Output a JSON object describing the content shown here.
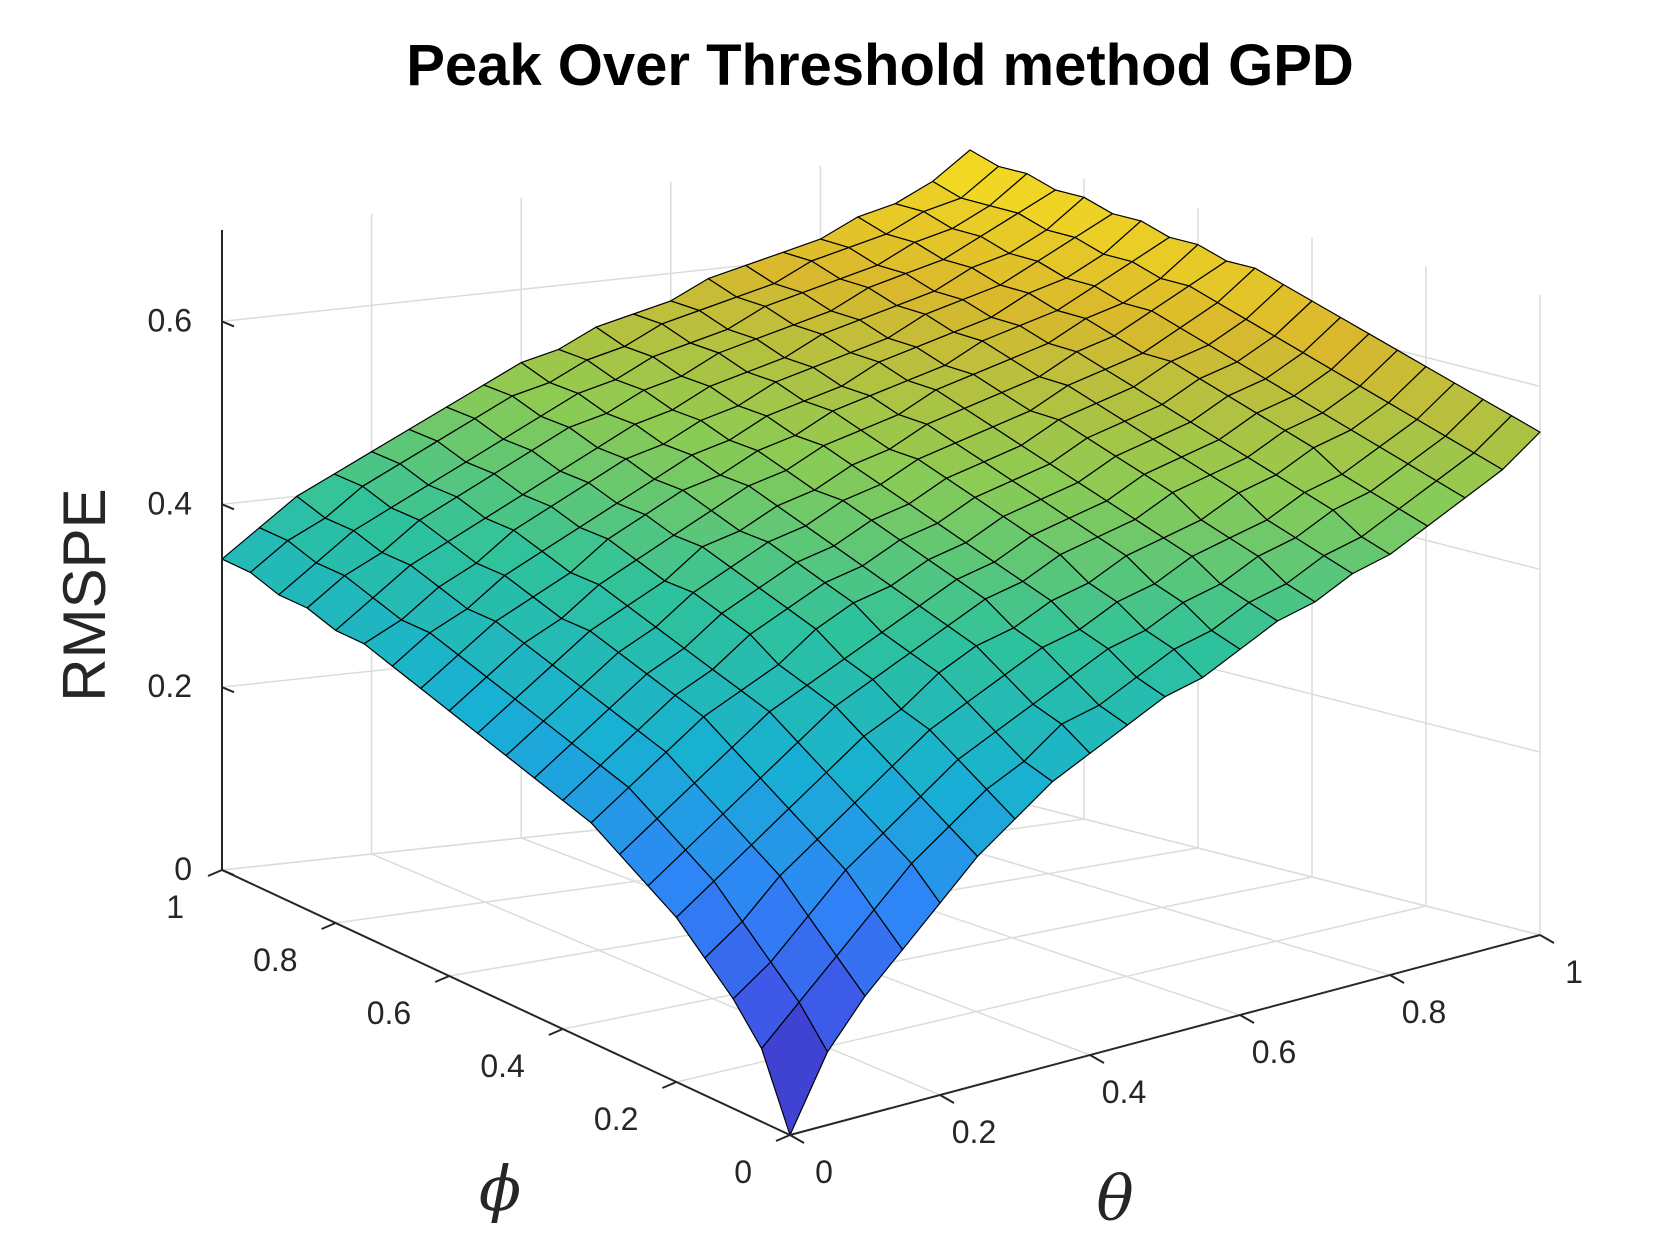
{
  "chart_data": {
    "type": "surface",
    "title": "Peak Over Threshold method GPD",
    "xlabel": "θ",
    "ylabel": "ϕ",
    "zlabel": "RMSPE",
    "xlim": [
      0,
      1
    ],
    "ylim": [
      0,
      1
    ],
    "zlim": [
      0,
      0.7
    ],
    "xticks": [
      "0",
      "0.2",
      "0.4",
      "0.6",
      "0.8",
      "1"
    ],
    "yticks": [
      "0",
      "0.2",
      "0.4",
      "0.6",
      "0.8",
      "1"
    ],
    "zticks": [
      "0",
      "0.2",
      "0.4",
      "0.6"
    ],
    "grid": true,
    "colormap": "parula",
    "colors": {
      "colormap_stops": [
        "#3e26a8",
        "#4150e4",
        "#2f83f8",
        "#18b0d3",
        "#2ec29c",
        "#8ccb54",
        "#d9b82d",
        "#f9e021"
      ],
      "edge": "#000000",
      "grid": "#dcdcdc",
      "axis": "#262626"
    },
    "x": [
      0,
      0.05,
      0.1,
      0.15,
      0.2,
      0.25,
      0.3,
      0.35,
      0.4,
      0.45,
      0.5,
      0.55,
      0.6,
      0.65,
      0.7,
      0.75,
      0.8,
      0.85,
      0.9,
      0.95,
      1
    ],
    "y": [
      0,
      0.05,
      0.1,
      0.15,
      0.2,
      0.25,
      0.3,
      0.35,
      0.4,
      0.45,
      0.5,
      0.55,
      0.6,
      0.65,
      0.7,
      0.75,
      0.8,
      0.85,
      0.9,
      0.95,
      1
    ],
    "z": [
      [
        0.0,
        0.08,
        0.13,
        0.17,
        0.21,
        0.25,
        0.28,
        0.31,
        0.33,
        0.35,
        0.37,
        0.38,
        0.4,
        0.42,
        0.43,
        0.45,
        0.46,
        0.48,
        0.5,
        0.52,
        0.55
      ],
      [
        0.08,
        0.12,
        0.16,
        0.2,
        0.24,
        0.27,
        0.3,
        0.32,
        0.35,
        0.36,
        0.38,
        0.4,
        0.41,
        0.43,
        0.44,
        0.46,
        0.47,
        0.49,
        0.51,
        0.53,
        0.56
      ],
      [
        0.12,
        0.15,
        0.19,
        0.23,
        0.26,
        0.29,
        0.32,
        0.34,
        0.36,
        0.38,
        0.4,
        0.41,
        0.43,
        0.44,
        0.46,
        0.47,
        0.49,
        0.5,
        0.52,
        0.54,
        0.57
      ],
      [
        0.15,
        0.18,
        0.22,
        0.25,
        0.28,
        0.31,
        0.34,
        0.36,
        0.38,
        0.4,
        0.41,
        0.43,
        0.44,
        0.46,
        0.47,
        0.48,
        0.5,
        0.51,
        0.53,
        0.55,
        0.58
      ],
      [
        0.18,
        0.21,
        0.24,
        0.27,
        0.3,
        0.33,
        0.35,
        0.38,
        0.4,
        0.41,
        0.43,
        0.44,
        0.46,
        0.47,
        0.48,
        0.5,
        0.51,
        0.53,
        0.54,
        0.56,
        0.59
      ],
      [
        0.2,
        0.23,
        0.26,
        0.29,
        0.32,
        0.35,
        0.37,
        0.39,
        0.41,
        0.43,
        0.44,
        0.46,
        0.47,
        0.48,
        0.5,
        0.51,
        0.52,
        0.54,
        0.55,
        0.57,
        0.6
      ],
      [
        0.22,
        0.25,
        0.28,
        0.31,
        0.34,
        0.36,
        0.38,
        0.4,
        0.42,
        0.44,
        0.45,
        0.47,
        0.48,
        0.49,
        0.51,
        0.52,
        0.53,
        0.55,
        0.56,
        0.58,
        0.61
      ],
      [
        0.24,
        0.27,
        0.3,
        0.33,
        0.35,
        0.37,
        0.4,
        0.42,
        0.43,
        0.45,
        0.46,
        0.48,
        0.49,
        0.5,
        0.52,
        0.53,
        0.54,
        0.56,
        0.57,
        0.59,
        0.62
      ],
      [
        0.25,
        0.28,
        0.31,
        0.34,
        0.36,
        0.39,
        0.41,
        0.43,
        0.44,
        0.46,
        0.47,
        0.49,
        0.5,
        0.51,
        0.53,
        0.54,
        0.55,
        0.57,
        0.58,
        0.6,
        0.63
      ],
      [
        0.26,
        0.29,
        0.32,
        0.35,
        0.37,
        0.4,
        0.42,
        0.44,
        0.45,
        0.47,
        0.48,
        0.5,
        0.51,
        0.52,
        0.54,
        0.55,
        0.56,
        0.58,
        0.59,
        0.61,
        0.64
      ],
      [
        0.27,
        0.3,
        0.33,
        0.36,
        0.38,
        0.41,
        0.43,
        0.45,
        0.46,
        0.48,
        0.49,
        0.51,
        0.52,
        0.53,
        0.54,
        0.56,
        0.57,
        0.58,
        0.6,
        0.62,
        0.65
      ],
      [
        0.28,
        0.31,
        0.34,
        0.37,
        0.39,
        0.41,
        0.44,
        0.45,
        0.47,
        0.48,
        0.5,
        0.51,
        0.53,
        0.54,
        0.55,
        0.56,
        0.58,
        0.59,
        0.61,
        0.63,
        0.65
      ],
      [
        0.29,
        0.32,
        0.35,
        0.37,
        0.4,
        0.42,
        0.44,
        0.46,
        0.48,
        0.49,
        0.51,
        0.52,
        0.53,
        0.55,
        0.56,
        0.57,
        0.58,
        0.6,
        0.61,
        0.63,
        0.66
      ],
      [
        0.3,
        0.33,
        0.36,
        0.38,
        0.4,
        0.43,
        0.45,
        0.47,
        0.48,
        0.5,
        0.51,
        0.53,
        0.54,
        0.55,
        0.56,
        0.58,
        0.59,
        0.6,
        0.62,
        0.64,
        0.66
      ],
      [
        0.31,
        0.34,
        0.36,
        0.39,
        0.41,
        0.43,
        0.45,
        0.47,
        0.49,
        0.5,
        0.52,
        0.53,
        0.54,
        0.56,
        0.57,
        0.58,
        0.59,
        0.61,
        0.62,
        0.64,
        0.67
      ],
      [
        0.32,
        0.34,
        0.37,
        0.39,
        0.42,
        0.44,
        0.46,
        0.48,
        0.49,
        0.51,
        0.52,
        0.54,
        0.55,
        0.56,
        0.57,
        0.59,
        0.6,
        0.61,
        0.63,
        0.65,
        0.67
      ],
      [
        0.32,
        0.35,
        0.38,
        0.4,
        0.42,
        0.44,
        0.46,
        0.48,
        0.5,
        0.51,
        0.53,
        0.54,
        0.55,
        0.57,
        0.58,
        0.59,
        0.6,
        0.62,
        0.63,
        0.65,
        0.68
      ],
      [
        0.33,
        0.36,
        0.38,
        0.41,
        0.43,
        0.45,
        0.47,
        0.49,
        0.5,
        0.52,
        0.53,
        0.55,
        0.56,
        0.57,
        0.58,
        0.6,
        0.61,
        0.62,
        0.64,
        0.66,
        0.68
      ],
      [
        0.33,
        0.36,
        0.39,
        0.41,
        0.43,
        0.45,
        0.47,
        0.49,
        0.51,
        0.52,
        0.54,
        0.55,
        0.56,
        0.58,
        0.59,
        0.6,
        0.61,
        0.63,
        0.64,
        0.66,
        0.69
      ],
      [
        0.34,
        0.37,
        0.39,
        0.42,
        0.44,
        0.46,
        0.48,
        0.5,
        0.51,
        0.53,
        0.54,
        0.56,
        0.57,
        0.58,
        0.59,
        0.61,
        0.62,
        0.63,
        0.65,
        0.66,
        0.69
      ],
      [
        0.34,
        0.37,
        0.4,
        0.42,
        0.44,
        0.46,
        0.48,
        0.5,
        0.52,
        0.53,
        0.55,
        0.56,
        0.57,
        0.59,
        0.6,
        0.61,
        0.62,
        0.64,
        0.65,
        0.67,
        0.7
      ]
    ]
  }
}
